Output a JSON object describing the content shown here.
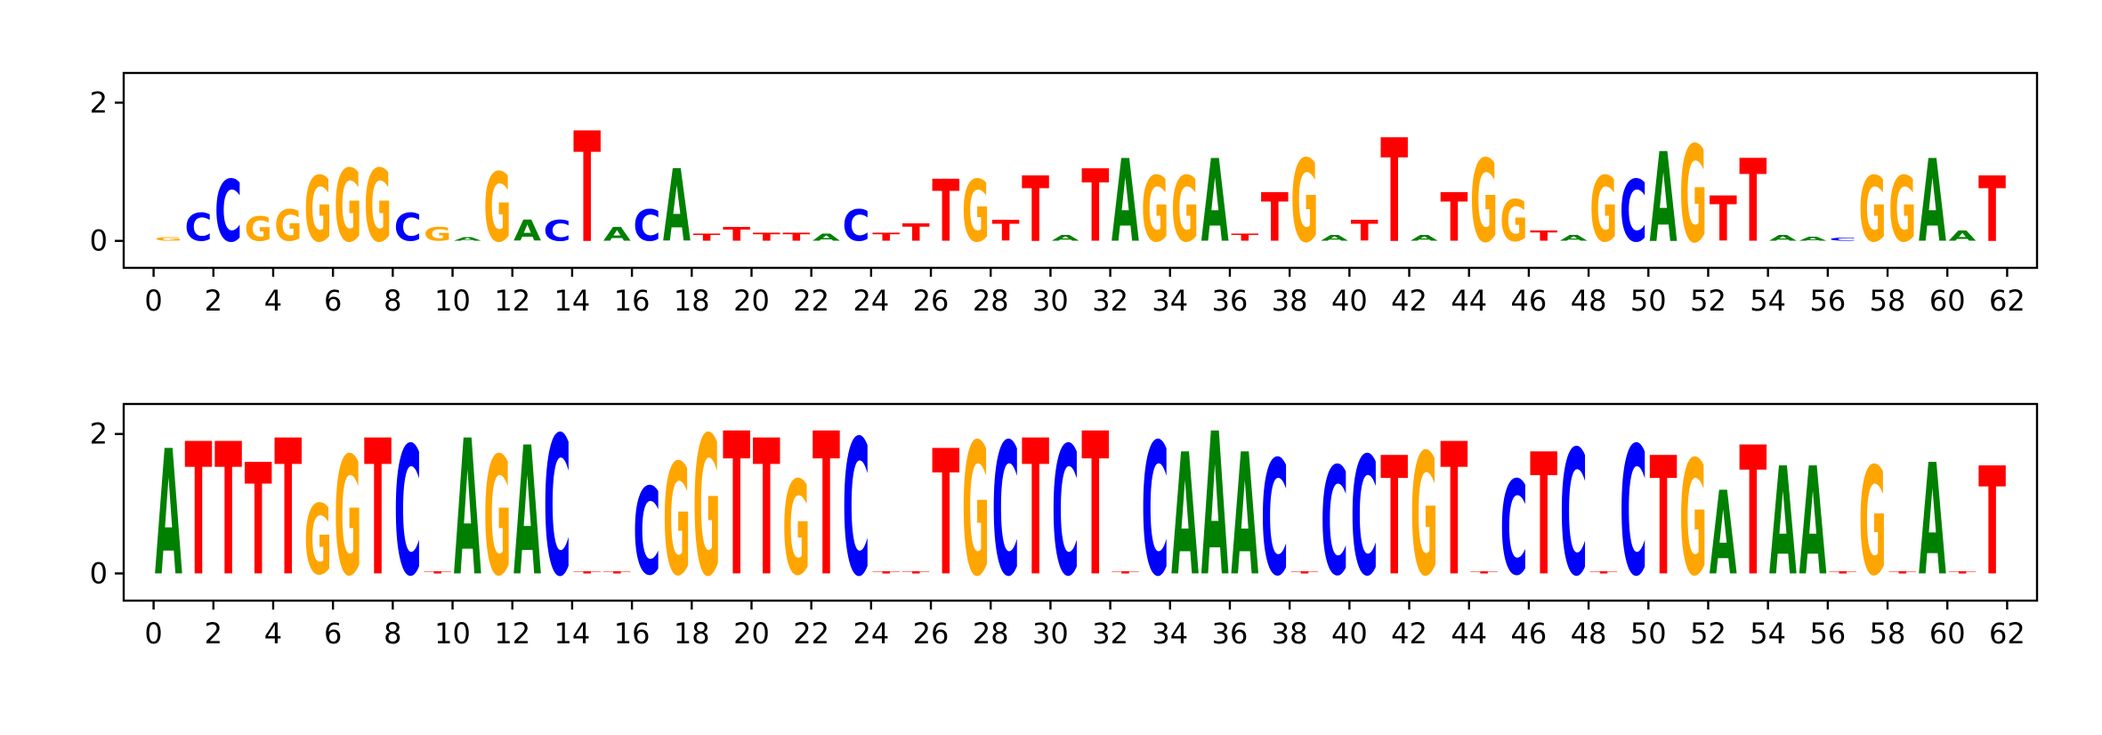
{
  "chart_data": [
    {
      "type": "logo",
      "letters": [
        "G",
        "C",
        "C",
        "G",
        "G",
        "G",
        "G",
        "G",
        "C",
        "G",
        "A",
        "G",
        "A",
        "C",
        "T",
        "A",
        "C",
        "A",
        "T",
        "T",
        "T",
        "T",
        "A",
        "C",
        "T",
        "T",
        "T",
        "G",
        "T",
        "T",
        "A",
        "T",
        "A",
        "G",
        "G",
        "A",
        "T",
        "T",
        "G",
        "A",
        "T",
        "T",
        "A",
        "T",
        "G",
        "G",
        "T",
        "A",
        "G",
        "C",
        "A",
        "G",
        "T",
        "T",
        "A",
        "A",
        "C",
        "G",
        "G",
        "A",
        "A",
        "T"
      ],
      "values": [
        0.05,
        0.4,
        0.9,
        0.35,
        0.45,
        0.95,
        1.05,
        1.05,
        0.4,
        0.2,
        0.05,
        1.0,
        0.3,
        0.3,
        1.6,
        0.2,
        0.45,
        1.05,
        0.1,
        0.2,
        0.12,
        0.12,
        0.1,
        0.45,
        0.12,
        0.25,
        0.9,
        0.9,
        0.3,
        0.95,
        0.08,
        1.05,
        1.2,
        0.95,
        0.95,
        1.2,
        0.1,
        0.7,
        1.2,
        0.08,
        0.3,
        1.5,
        0.08,
        0.7,
        1.2,
        0.6,
        0.15,
        0.08,
        0.95,
        0.9,
        1.3,
        1.4,
        0.65,
        1.2,
        0.08,
        0.06,
        0.04,
        0.95,
        0.95,
        1.2,
        0.15,
        0.95
      ],
      "colors": {
        "A": "#008000",
        "C": "#0000ff",
        "G": "#ffa500",
        "T": "#ff0000"
      },
      "xlim": [
        -1,
        63
      ],
      "ylim": [
        -0.39,
        2.43
      ],
      "xticks": [
        0,
        2,
        4,
        6,
        8,
        10,
        12,
        14,
        16,
        18,
        20,
        22,
        24,
        26,
        28,
        30,
        32,
        34,
        36,
        38,
        40,
        42,
        44,
        46,
        48,
        50,
        52,
        54,
        56,
        58,
        60,
        62
      ],
      "yticks": [
        0,
        2
      ]
    },
    {
      "type": "logo",
      "letters": [
        "A",
        "T",
        "T",
        "T",
        "T",
        "G",
        "G",
        "T",
        "C",
        "T",
        "A",
        "G",
        "A",
        "C",
        "T",
        "T",
        "C",
        "G",
        "G",
        "T",
        "T",
        "G",
        "T",
        "C",
        "T",
        "T",
        "T",
        "G",
        "C",
        "T",
        "C",
        "T",
        "T",
        "C",
        "A",
        "A",
        "A",
        "C",
        "T",
        "C",
        "C",
        "T",
        "G",
        "T",
        "T",
        "C",
        "T",
        "C",
        "T",
        "C",
        "T",
        "G",
        "A",
        "T",
        "A",
        "A",
        "T",
        "G",
        "T",
        "A",
        "T",
        "T"
      ],
      "values": [
        1.8,
        1.9,
        1.9,
        1.6,
        1.95,
        1.0,
        1.7,
        1.95,
        1.85,
        0.03,
        1.95,
        1.7,
        1.85,
        2.0,
        0.03,
        0.03,
        1.25,
        1.6,
        2.0,
        2.05,
        1.95,
        1.35,
        2.05,
        1.95,
        0.03,
        0.03,
        1.8,
        1.9,
        1.9,
        1.95,
        1.85,
        2.05,
        0.03,
        1.9,
        1.75,
        2.05,
        1.75,
        1.65,
        0.03,
        1.55,
        1.7,
        1.7,
        1.75,
        1.9,
        0.03,
        1.35,
        1.75,
        1.8,
        0.03,
        1.85,
        1.7,
        1.65,
        1.2,
        1.85,
        1.55,
        1.55,
        0.03,
        1.55,
        0.03,
        1.6,
        0.03,
        1.55
      ],
      "colors": {
        "A": "#008000",
        "C": "#0000ff",
        "G": "#ffa500",
        "T": "#ff0000"
      },
      "xlim": [
        -1,
        63
      ],
      "ylim": [
        -0.39,
        2.43
      ],
      "xticks": [
        0,
        2,
        4,
        6,
        8,
        10,
        12,
        14,
        16,
        18,
        20,
        22,
        24,
        26,
        28,
        30,
        32,
        34,
        36,
        38,
        40,
        42,
        44,
        46,
        48,
        50,
        52,
        54,
        56,
        58,
        60,
        62
      ],
      "yticks": [
        0,
        2
      ]
    }
  ]
}
